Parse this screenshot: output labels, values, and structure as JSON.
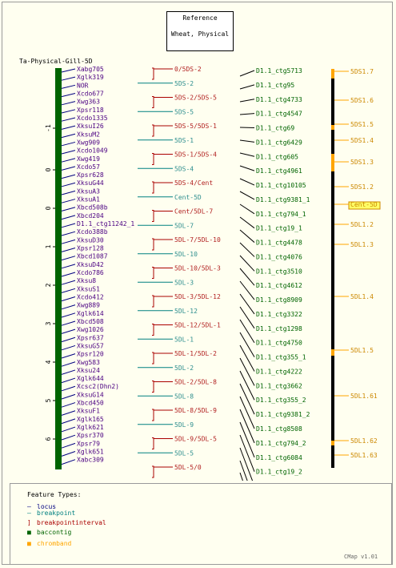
{
  "reference": {
    "line1": "Reference",
    "line2": "Wheat, Physical"
  },
  "map_title": "Ta-Physical-Gill-5D",
  "axis_ticks": [
    "-1",
    "0",
    "0",
    "1",
    "2",
    "3",
    "4",
    "5",
    "6",
    "7"
  ],
  "loci": [
    "Xabg705",
    "Xglk319",
    "NOR",
    "Xcdo677",
    "Xwg363",
    "Xpsr118",
    "Xcdo1335",
    "XksuI26",
    "XksuM2",
    "Xwg909",
    "Xcdo1049",
    "Xwg419",
    "Xcdo57",
    "Xpsr628",
    "XksuG44",
    "XksuA3",
    "XksuA1",
    "Xbcd508b",
    "Xbcd204",
    "D1.1_ctg11242_1",
    "Xcdo388b",
    "XksuD30",
    "Xpsr128",
    "Xbcd1087",
    "XksuD42",
    "Xcdo786",
    "Xksu8",
    "XksuS1",
    "Xcdo412",
    "Xwg889",
    "Xglk614",
    "Xbcd508",
    "Xwg1026",
    "Xpsr637",
    "XksuG57",
    "Xpsr120",
    "Xwg583",
    "Xksu24",
    "Xglk644",
    "Xcsc2(Dhn2)",
    "XksuG14",
    "Xbcd450",
    "XksuF1",
    "Xglk165",
    "Xglk621",
    "Xpsr370",
    "Xpsr79",
    "Xglk651",
    "Xabc309"
  ],
  "breakpoints": [
    {
      "label": "0/5DS-2",
      "kind": "interval"
    },
    {
      "label": "5DS-2",
      "kind": "point"
    },
    {
      "label": "5DS-2/5DS-5",
      "kind": "interval"
    },
    {
      "label": "5DS-5",
      "kind": "point"
    },
    {
      "label": "5DS-5/5DS-1",
      "kind": "interval"
    },
    {
      "label": "5DS-1",
      "kind": "point"
    },
    {
      "label": "5DS-1/5DS-4",
      "kind": "interval"
    },
    {
      "label": "5DS-4",
      "kind": "point"
    },
    {
      "label": "5DS-4/Cent",
      "kind": "interval"
    },
    {
      "label": "Cent-5D",
      "kind": "point"
    },
    {
      "label": "Cent/5DL-7",
      "kind": "interval"
    },
    {
      "label": "5DL-7",
      "kind": "point"
    },
    {
      "label": "5DL-7/5DL-10",
      "kind": "interval"
    },
    {
      "label": "5DL-10",
      "kind": "point"
    },
    {
      "label": "5DL-10/5DL-3",
      "kind": "interval"
    },
    {
      "label": "5DL-3",
      "kind": "point"
    },
    {
      "label": "5DL-3/5DL-12",
      "kind": "interval"
    },
    {
      "label": "5DL-12",
      "kind": "point"
    },
    {
      "label": "5DL-12/5DL-1",
      "kind": "interval"
    },
    {
      "label": "5DL-1",
      "kind": "point"
    },
    {
      "label": "5DL-1/5DL-2",
      "kind": "interval"
    },
    {
      "label": "5DL-2",
      "kind": "point"
    },
    {
      "label": "5DL-2/5DL-8",
      "kind": "interval"
    },
    {
      "label": "5DL-8",
      "kind": "point"
    },
    {
      "label": "5DL-8/5DL-9",
      "kind": "interval"
    },
    {
      "label": "5DL-9",
      "kind": "point"
    },
    {
      "label": "5DL-9/5DL-5",
      "kind": "interval"
    },
    {
      "label": "5DL-5",
      "kind": "point"
    },
    {
      "label": "5DL-5/0",
      "kind": "interval"
    }
  ],
  "contigs": [
    "D1.1_ctg5713",
    "D1.1_ctg95",
    "D1.1_ctg4733",
    "D1.1_ctg4547",
    "D1.1_ctg69",
    "D1.1_ctg6429",
    "D1.1_ctg605",
    "D1.1_ctg4961",
    "D1.1_ctg10105",
    "D1.1_ctg9381_1",
    "D1.1_ctg794_1",
    "D1.1_ctg19_1",
    "D1.1_ctg4478",
    "D1.1_ctg4076",
    "D1.1_ctg3510",
    "D1.1_ctg4612",
    "D1.1_ctg8909",
    "D1.1_ctg3322",
    "D1.1_ctg1298",
    "D1.1_ctg4750",
    "D1.1_ctg355_1",
    "D1.1_ctg4222",
    "D1.1_ctg3662",
    "D1.1_ctg355_2",
    "D1.1_ctg9381_2",
    "D1.1_ctg8508",
    "D1.1_ctg794_2",
    "D1.1_ctg6084",
    "D1.1_ctg19_2",
    "D1.1_ctg5282",
    "D1.1_ctg123",
    "D1.1_ctg11242_2"
  ],
  "chrombands": [
    {
      "label": "5DS1.7",
      "highlight": false
    },
    {
      "label": "5DS1.6",
      "highlight": false
    },
    {
      "label": "5DS1.5",
      "highlight": false
    },
    {
      "label": "5DS1.4",
      "highlight": false
    },
    {
      "label": "5DS1.3",
      "highlight": false
    },
    {
      "label": "5DS1.2",
      "highlight": false
    },
    {
      "label": "Cent-5D",
      "highlight": true
    },
    {
      "label": "5DL1.2",
      "highlight": false
    },
    {
      "label": "5DL1.3",
      "highlight": false
    },
    {
      "label": "5DL1.4",
      "highlight": false
    },
    {
      "label": "5DL1.5",
      "highlight": false
    },
    {
      "label": "5DL1.61",
      "highlight": false
    },
    {
      "label": "5DL1.62",
      "highlight": false
    },
    {
      "label": "5DL1.63",
      "highlight": false
    }
  ],
  "legend": {
    "title": "Feature Types:",
    "items": [
      {
        "label": "locus",
        "color": "#000080"
      },
      {
        "label": "breakpoint",
        "color": "#008080"
      },
      {
        "label": "breakpointinterval",
        "color": "#aa0000"
      },
      {
        "label": "baccontig",
        "color": "#006400"
      },
      {
        "label": "chromband",
        "color": "#ffa500"
      }
    ]
  },
  "version": "CMap v1.01",
  "colors": {
    "locus_text": "#4b0082",
    "breakpoint_text": "#2f8f8f",
    "interval_text": "#b22222",
    "contig_text": "#006400",
    "chromband_text": "#cc8800",
    "chromband_fill": "#ffa500",
    "contig_bar": "#006400"
  }
}
